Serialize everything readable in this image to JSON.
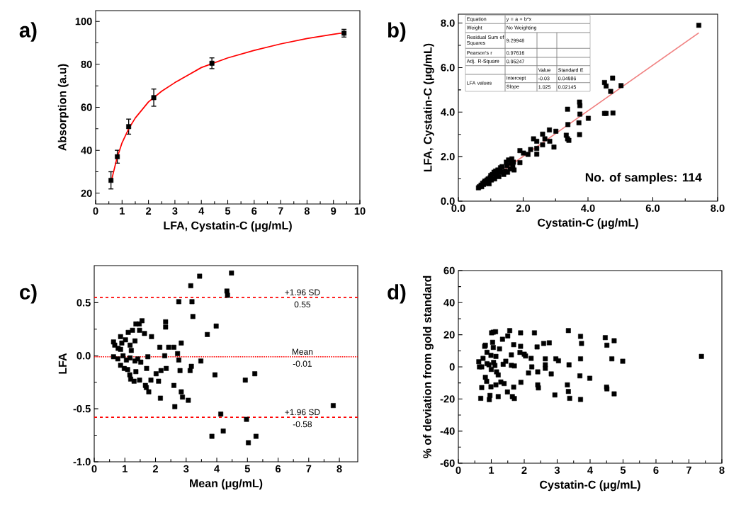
{
  "chart_data": [
    {
      "type": "scatter",
      "title": "a)",
      "xlabel": "LFA, Cystatin-C (μg/mL)",
      "ylabel": "Absorption (a.u)",
      "xlim": [
        0,
        10
      ],
      "ylim": [
        15,
        105
      ],
      "xticks": [
        0,
        1,
        2,
        3,
        4,
        5,
        6,
        7,
        8,
        9,
        10
      ],
      "yticks": [
        20,
        40,
        60,
        80,
        100
      ],
      "series": [
        {
          "type": "scatter",
          "marker": "square",
          "color": "#000000",
          "x": [
            0.58,
            0.82,
            1.25,
            2.2,
            4.4,
            9.4
          ],
          "values": [
            26,
            37,
            51,
            64.5,
            80.5,
            94.5
          ],
          "errors": [
            4,
            3,
            3.5,
            4,
            2.5,
            1.8
          ]
        },
        {
          "type": "line",
          "color": "#ff0000",
          "x": [
            0.6,
            0.8,
            1.0,
            1.25,
            1.5,
            2,
            2.5,
            3,
            3.5,
            4,
            5,
            6,
            7,
            8,
            9,
            9.4
          ],
          "values": [
            26,
            36,
            43.5,
            50,
            55,
            62.5,
            67.5,
            71.5,
            75,
            78.5,
            83,
            86.5,
            89.5,
            92,
            94,
            94.7
          ]
        }
      ]
    },
    {
      "type": "scatter",
      "title": "b)",
      "xlabel": "Cystatin-C (μg/mL)",
      "ylabel": "LFA, Cystatin-C (μg/mL)",
      "xlim": [
        0,
        8
      ],
      "ylim": [
        0,
        8.4
      ],
      "xticks": [
        {
          "value": 0,
          "label": "0.0"
        },
        {
          "value": 2,
          "label": "2.0"
        },
        {
          "value": 4,
          "label": "4.0"
        },
        {
          "value": 6,
          "label": "6.0"
        },
        {
          "value": 8,
          "label": "8.0"
        }
      ],
      "yticks": [
        {
          "value": 0,
          "label": "0.0"
        },
        {
          "value": 2,
          "label": "2.0"
        },
        {
          "value": 4,
          "label": "4.0"
        },
        {
          "value": 6,
          "label": "6.0"
        },
        {
          "value": 8,
          "label": "8.0"
        }
      ],
      "annotations": [
        "Equation",
        "y = a + b*x",
        "Weight",
        "No Weighting",
        "Residual Sum of Squares",
        "9.29948",
        "Pearson's r",
        "0.97616",
        "Adj. R-Square",
        "0.95247",
        "Value",
        "Standard E",
        "LFA values",
        "Intercept",
        "-0.03",
        "0.04986",
        "Slope",
        "1.025",
        "0.02145",
        "No. of samples: 114"
      ],
      "series": [
        {
          "type": "scatter",
          "marker": "square",
          "color": "#000000",
          "x": [
            0.62,
            0.65,
            0.7,
            0.72,
            0.75,
            0.78,
            0.8,
            0.82,
            0.85,
            0.88,
            0.92,
            0.95,
            0.98,
            1.0,
            1.02,
            1.05,
            1.1,
            1.12,
            1.15,
            1.18,
            1.2,
            1.22,
            1.25,
            1.3,
            1.32,
            1.35,
            1.4,
            1.45,
            1.48,
            1.5,
            1.52,
            1.55,
            1.6,
            1.62,
            1.65,
            1.68,
            1.7,
            1.72,
            1.9,
            1.9,
            2.01,
            2.15,
            2.23,
            2.42,
            2.42,
            2.32,
            2.42,
            2.6,
            2.6,
            2.67,
            2.82,
            2.81,
            2.95,
            3.01,
            3.37,
            3.38,
            3.33,
            3.37,
            3.41,
            3.74,
            3.75,
            3.75,
            3.72,
            3.74,
            4.01,
            4.51,
            4.56,
            4.51,
            4.56,
            4.76,
            4.7,
            4.77,
            5.02,
            7.42
          ],
          "values": [
            0.6,
            0.65,
            0.72,
            0.65,
            0.8,
            0.75,
            0.85,
            0.9,
            0.8,
            0.95,
            1.0,
            0.78,
            1.05,
            1.15,
            0.95,
            1.2,
            1.3,
            1.0,
            1.35,
            1.15,
            1.25,
            1.4,
            1.1,
            1.5,
            1.3,
            1.55,
            1.2,
            1.35,
            1.75,
            1.6,
            1.3,
            1.85,
            1.45,
            1.7,
            1.9,
            1.55,
            1.75,
            1.4,
            1.73,
            2.27,
            2.16,
            2.1,
            2.32,
            2.37,
            2.11,
            2.8,
            2.69,
            3.01,
            2.53,
            2.8,
            2.69,
            3.2,
            2.43,
            3.14,
            4.13,
            3.44,
            2.96,
            2.8,
            2.73,
            4.45,
            4.29,
            3.91,
            3.52,
            2.99,
            3.72,
            5.33,
            5.17,
            3.94,
            3.94,
            5.53,
            4.93,
            3.96,
            5.19,
            7.9
          ]
        },
        {
          "type": "line",
          "color": "#f08080",
          "x": [
            0.62,
            7.42
          ],
          "values": [
            0.6,
            7.56
          ]
        }
      ]
    },
    {
      "type": "scatter",
      "title": "c)",
      "xlabel": "Mean (μg/mL)",
      "ylabel": "LFA",
      "marker": "square",
      "xlim": [
        0,
        8.6
      ],
      "ylim": [
        -1.0,
        0.85
      ],
      "xticks": [
        0,
        1,
        2,
        3,
        4,
        5,
        6,
        7,
        8
      ],
      "yticks": [
        {
          "value": -1.0,
          "label": "-1.0"
        },
        {
          "value": -0.5,
          "label": "-0.5"
        },
        {
          "value": 0,
          "label": "0.0"
        },
        {
          "value": 0.5,
          "label": "0.5"
        }
      ],
      "ref_lines": [
        {
          "axis": "y",
          "value": 0.55,
          "label": "+1.96 SD",
          "color": "#ff0000",
          "line_style": "dashed"
        },
        {
          "axis": "y",
          "value": -0.01,
          "label": "Mean",
          "color": "#ff0000",
          "line_style": "dotted"
        },
        {
          "axis": "y",
          "value": -0.58,
          "label": "+1.96 SD",
          "color": "#ff0000",
          "line_style": "dashed"
        }
      ],
      "annotations": [
        {
          "text": "0.55",
          "y": 0.55
        },
        {
          "text": "-0.01",
          "y": -0.01
        },
        {
          "text": "-0.58",
          "y": -0.58
        }
      ],
      "color": "#000000",
      "x": [
        0.63,
        0.67,
        0.86,
        0.78,
        0.9,
        1.02,
        1.11,
        1.25,
        1.36,
        1.47,
        1.56,
        1.48,
        1.64,
        1.33,
        1.87,
        1.17,
        1.21,
        0.86,
        0.63,
        0.77,
        0.94,
        1.05,
        1.17,
        1.33,
        1.42,
        1.52,
        1.75,
        0.86,
        0.98,
        1.09,
        1.16,
        1.19,
        1.3,
        1.36,
        1.48,
        1.67,
        1.7,
        1.78,
        1.85,
        1.71,
        2.02,
        2.1,
        2.16,
        2.14,
        2.18,
        2.3,
        2.35,
        2.33,
        2.33,
        2.43,
        2.6,
        2.6,
        2.63,
        2.72,
        2.76,
        2.8,
        2.84,
        2.84,
        2.88,
        2.76,
        3.07,
        3.15,
        3.19,
        3.22,
        3.17,
        3.13,
        3.44,
        3.48,
        3.69,
        3.84,
        3.94,
        3.98,
        4.13,
        4.21,
        4.33,
        4.35,
        4.48,
        4.93,
        4.97,
        5.03,
        5.24,
        5.28,
        7.8
      ],
      "values": [
        0.13,
        0.1,
        0.18,
        0.07,
        0.12,
        0.15,
        0.22,
        0.24,
        0.3,
        0.3,
        0.33,
        0.24,
        0.21,
        0.14,
        0.18,
        0.1,
        0.05,
        0.06,
        -0.01,
        -0.03,
        0.0,
        -0.04,
        -0.02,
        -0.05,
        -0.03,
        -0.06,
        -0.01,
        -0.09,
        -0.12,
        -0.13,
        -0.18,
        -0.22,
        -0.24,
        -0.15,
        -0.23,
        -0.28,
        -0.3,
        -0.34,
        -0.23,
        -0.12,
        -0.17,
        -0.24,
        -0.4,
        0.08,
        -0.14,
        0.0,
        -0.12,
        0.32,
        0.27,
        0.08,
        0.08,
        -0.28,
        -0.48,
        0.02,
        -0.04,
        -0.14,
        0.12,
        -0.34,
        -0.39,
        0.51,
        -0.42,
        0.66,
        0.51,
        0.37,
        -0.1,
        -0.14,
        0.75,
        -0.05,
        0.2,
        -0.76,
        -0.18,
        0.28,
        -0.55,
        -0.71,
        0.61,
        0.57,
        0.78,
        -0.23,
        -0.6,
        -0.82,
        -0.17,
        -0.76,
        -0.47
      ]
    },
    {
      "type": "scatter",
      "title": "d)",
      "xlabel": "Cystatin-C (μg/mL)",
      "ylabel": "% of deviation from gold standard",
      "marker": "square",
      "xlim": [
        0,
        8
      ],
      "ylim": [
        -60,
        60
      ],
      "xticks": [
        0,
        1,
        2,
        3,
        4,
        5,
        6,
        7,
        8
      ],
      "yticks": [
        -60,
        -40,
        -20,
        0,
        20,
        40,
        60
      ],
      "color": "#000000",
      "x": [
        0.62,
        0.64,
        0.71,
        0.75,
        0.71,
        0.68,
        0.8,
        0.82,
        0.87,
        0.82,
        0.86,
        0.87,
        0.93,
        0.96,
        0.94,
        0.99,
        1.0,
        0.99,
        1.01,
        1.06,
        1.13,
        1.04,
        1.06,
        1.07,
        1.11,
        1.14,
        1.14,
        1.16,
        1.21,
        1.25,
        1.21,
        1.29,
        1.34,
        1.36,
        1.39,
        1.44,
        1.49,
        1.5,
        1.56,
        1.61,
        1.61,
        1.64,
        1.68,
        1.7,
        1.7,
        1.68,
        1.89,
        1.89,
        1.87,
        2.0,
        2.04,
        1.9,
        2.13,
        2.21,
        2.23,
        2.31,
        2.39,
        2.41,
        2.41,
        2.43,
        2.59,
        2.64,
        2.64,
        2.64,
        2.76,
        2.82,
        2.93,
        2.96,
        3.04,
        3.34,
        3.31,
        3.36,
        3.34,
        3.38,
        3.71,
        3.74,
        3.71,
        3.69,
        3.71,
        3.99,
        4.46,
        4.51,
        4.5,
        4.51,
        4.66,
        4.73,
        4.73,
        4.99,
        7.38
      ],
      "values": [
        3.2,
        0,
        0,
        5.3,
        -12.9,
        -19.6,
        12.8,
        13.5,
        9.1,
        -6.5,
        -9,
        2,
        1.3,
        -17.8,
        -20.4,
        -12.4,
        -1.6,
        7.2,
        21.2,
        21.6,
        21.9,
        15.3,
        12.1,
        2.8,
        0.9,
        6.5,
        -11.2,
        -3.1,
        -5,
        11.2,
        -18.5,
        -9.4,
        17.2,
        1.6,
        -10.4,
        3.5,
        -15.6,
        19.3,
        22.6,
        7.5,
        1,
        -18.5,
        13.8,
        -19.7,
        0.6,
        -12.6,
        21.2,
        12.8,
        9,
        7.9,
        6.8,
        -9.6,
        -3.8,
        5.3,
        0,
        21.2,
        12.4,
        -3.1,
        -11.2,
        -13.1,
        14.6,
        5,
        1.3,
        -0.9,
        15,
        -4.4,
        -17.5,
        5,
        3.8,
        22.6,
        -11.2,
        1.3,
        -15.3,
        -19.6,
        19,
        14.6,
        5,
        -5.6,
        -20.3,
        -7.1,
        18.2,
        13.5,
        -12.6,
        -13.7,
        5,
        16.3,
        -16.8,
        3.5,
        6.5
      ]
    }
  ]
}
